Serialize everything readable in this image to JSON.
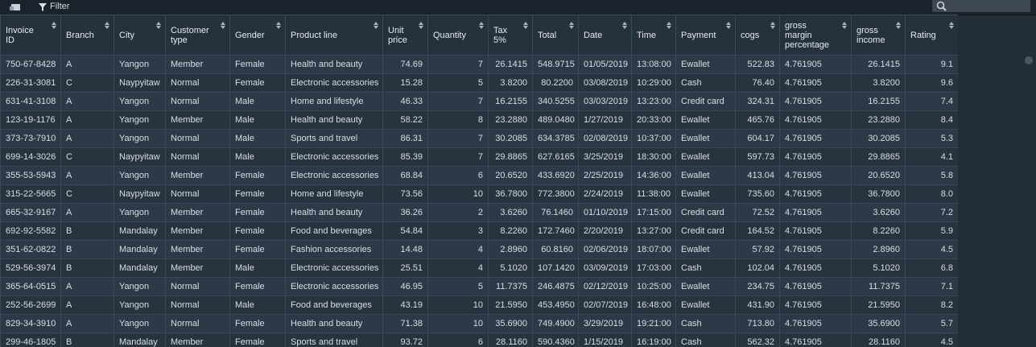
{
  "toolbar": {
    "filter": "Filter"
  },
  "table": {
    "headers": [
      [
        "Invoice",
        "ID"
      ],
      [
        "Branch"
      ],
      [
        "City"
      ],
      [
        "Customer",
        "type"
      ],
      [
        "Gender"
      ],
      [
        "Product line"
      ],
      [
        "Unit",
        "price"
      ],
      [
        "Quantity"
      ],
      [
        "Tax",
        "5%"
      ],
      [
        "Total"
      ],
      [
        "Date"
      ],
      [
        "Time"
      ],
      [
        "Payment"
      ],
      [
        "cogs"
      ],
      [
        "gross",
        "margin",
        "percentage"
      ],
      [
        "gross",
        "income"
      ],
      [
        "Rating"
      ]
    ],
    "rows": [
      [
        "750-67-8428",
        "A",
        "Yangon",
        "Member",
        "Female",
        "Health and beauty",
        "74.69",
        "7",
        "26.1415",
        "548.9715",
        "01/05/2019",
        "13:08:00",
        "Ewallet",
        "522.83",
        "4.761905",
        "26.1415",
        "9.1"
      ],
      [
        "226-31-3081",
        "C",
        "Naypyitaw",
        "Normal",
        "Female",
        "Electronic accessories",
        "15.28",
        "5",
        "3.8200",
        "80.2200",
        "03/08/2019",
        "10:29:00",
        "Cash",
        "76.40",
        "4.761905",
        "3.8200",
        "9.6"
      ],
      [
        "631-41-3108",
        "A",
        "Yangon",
        "Normal",
        "Male",
        "Home and lifestyle",
        "46.33",
        "7",
        "16.2155",
        "340.5255",
        "03/03/2019",
        "13:23:00",
        "Credit card",
        "324.31",
        "4.761905",
        "16.2155",
        "7.4"
      ],
      [
        "123-19-1176",
        "A",
        "Yangon",
        "Member",
        "Male",
        "Health and beauty",
        "58.22",
        "8",
        "23.2880",
        "489.0480",
        "1/27/2019",
        "20:33:00",
        "Ewallet",
        "465.76",
        "4.761905",
        "23.2880",
        "8.4"
      ],
      [
        "373-73-7910",
        "A",
        "Yangon",
        "Normal",
        "Male",
        "Sports and travel",
        "86.31",
        "7",
        "30.2085",
        "634.3785",
        "02/08/2019",
        "10:37:00",
        "Ewallet",
        "604.17",
        "4.761905",
        "30.2085",
        "5.3"
      ],
      [
        "699-14-3026",
        "C",
        "Naypyitaw",
        "Normal",
        "Male",
        "Electronic accessories",
        "85.39",
        "7",
        "29.8865",
        "627.6165",
        "3/25/2019",
        "18:30:00",
        "Ewallet",
        "597.73",
        "4.761905",
        "29.8865",
        "4.1"
      ],
      [
        "355-53-5943",
        "A",
        "Yangon",
        "Member",
        "Female",
        "Electronic accessories",
        "68.84",
        "6",
        "20.6520",
        "433.6920",
        "2/25/2019",
        "14:36:00",
        "Ewallet",
        "413.04",
        "4.761905",
        "20.6520",
        "5.8"
      ],
      [
        "315-22-5665",
        "C",
        "Naypyitaw",
        "Normal",
        "Female",
        "Home and lifestyle",
        "73.56",
        "10",
        "36.7800",
        "772.3800",
        "2/24/2019",
        "11:38:00",
        "Ewallet",
        "735.60",
        "4.761905",
        "36.7800",
        "8.0"
      ],
      [
        "665-32-9167",
        "A",
        "Yangon",
        "Member",
        "Female",
        "Health and beauty",
        "36.26",
        "2",
        "3.6260",
        "76.1460",
        "01/10/2019",
        "17:15:00",
        "Credit card",
        "72.52",
        "4.761905",
        "3.6260",
        "7.2"
      ],
      [
        "692-92-5582",
        "B",
        "Mandalay",
        "Member",
        "Female",
        "Food and beverages",
        "54.84",
        "3",
        "8.2260",
        "172.7460",
        "2/20/2019",
        "13:27:00",
        "Credit card",
        "164.52",
        "4.761905",
        "8.2260",
        "5.9"
      ],
      [
        "351-62-0822",
        "B",
        "Mandalay",
        "Member",
        "Female",
        "Fashion accessories",
        "14.48",
        "4",
        "2.8960",
        "60.8160",
        "02/06/2019",
        "18:07:00",
        "Ewallet",
        "57.92",
        "4.761905",
        "2.8960",
        "4.5"
      ],
      [
        "529-56-3974",
        "B",
        "Mandalay",
        "Member",
        "Male",
        "Electronic accessories",
        "25.51",
        "4",
        "5.1020",
        "107.1420",
        "03/09/2019",
        "17:03:00",
        "Cash",
        "102.04",
        "4.761905",
        "5.1020",
        "6.8"
      ],
      [
        "365-64-0515",
        "A",
        "Yangon",
        "Normal",
        "Female",
        "Electronic accessories",
        "46.95",
        "5",
        "11.7375",
        "246.4875",
        "02/12/2019",
        "10:25:00",
        "Ewallet",
        "234.75",
        "4.761905",
        "11.7375",
        "7.1"
      ],
      [
        "252-56-2699",
        "A",
        "Yangon",
        "Normal",
        "Male",
        "Food and beverages",
        "43.19",
        "10",
        "21.5950",
        "453.4950",
        "02/07/2019",
        "16:48:00",
        "Ewallet",
        "431.90",
        "4.761905",
        "21.5950",
        "8.2"
      ],
      [
        "829-34-3910",
        "A",
        "Yangon",
        "Normal",
        "Female",
        "Health and beauty",
        "71.38",
        "10",
        "35.6900",
        "749.4900",
        "3/29/2019",
        "19:21:00",
        "Cash",
        "713.80",
        "4.761905",
        "35.6900",
        "5.7"
      ],
      [
        "299-46-1805",
        "B",
        "Mandalay",
        "Member",
        "Female",
        "Sports and travel",
        "93.72",
        "6",
        "28.1160",
        "590.4360",
        "1/15/2019",
        "16:19:00",
        "Cash",
        "562.32",
        "4.761905",
        "28.1160",
        "4.5"
      ]
    ]
  }
}
